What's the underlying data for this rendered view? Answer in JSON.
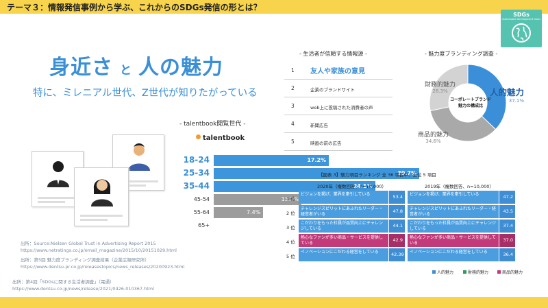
{
  "header": {
    "title": "テーマ３：情報発信事例から学ぶ、これからのSDGs発信の形とは？"
  },
  "badge": {
    "title": "SDGs",
    "subtitle": "Sustainable Development Goals",
    "icon": "globe-icon",
    "color": "#56c3b1"
  },
  "headline": {
    "part1": "身近さ",
    "connector": "と",
    "part2": "人の魅力"
  },
  "subline": "特に、ミレニアル世代、Z世代が知りたがっている",
  "talentbook": {
    "heading": "- talentbook閲覧世代 -",
    "logo": "talentbook",
    "ages": [
      {
        "label": "18-24",
        "value": "17.2%",
        "percent": 17.2,
        "highlight": true
      },
      {
        "label": "25-34",
        "value": "30.7%",
        "percent": 30.7,
        "highlight": true
      },
      {
        "label": "35-44",
        "value": "24.1%",
        "percent": 24.1,
        "highlight": true
      },
      {
        "label": "45-54",
        "value": "13.1%",
        "percent": 13.1,
        "highlight": false
      },
      {
        "label": "55-64",
        "value": "7.4%",
        "percent": 7.4,
        "highlight": false
      },
      {
        "label": "65+",
        "value": "",
        "percent": 0,
        "highlight": false
      }
    ]
  },
  "sources": [
    "出所：Source:Nielsen Global Trust in Advertising Report 2015",
    "https://www.netratings.co.jp/email_magazine/2015/10/20151029.html",
    "出所：第5回 魅力度ブランディング調査結果（企業広報研究所）",
    "https://www.dentsu-pr.co.jp/releasestopics/news_releases/20200923.html",
    "出所：第4回「SDGsに関する生活者調査」（電通）",
    "https://www.dentsu.co.jp/news/release/2021/0426-010367.html"
  ],
  "trust": {
    "heading": "- 生活者が信頼する情報源 -",
    "items": [
      {
        "rank": "1",
        "label": "友人や家族の意見"
      },
      {
        "rank": "2",
        "label": "企業のブランドサイト"
      },
      {
        "rank": "3",
        "label": "web上に投稿された消費者の声"
      },
      {
        "rank": "4",
        "label": "新聞広告"
      },
      {
        "rank": "5",
        "label": "映画の前の広告"
      }
    ]
  },
  "donut": {
    "heading": "- 魅力度ブランディング調査 -",
    "center": [
      "コーポレートブランド",
      "魅力の構成比"
    ],
    "slices": [
      {
        "label": "人的魅力",
        "value": 37.1,
        "pct": "37.1%",
        "color": "#3b8fd9"
      },
      {
        "label": "商品的魅力",
        "value": 34.6,
        "pct": "34.6%",
        "color": "#a9a9a9"
      },
      {
        "label": "財務的魅力",
        "value": 28.3,
        "pct": "28.3%",
        "color": "#d3d3d3"
      }
    ]
  },
  "ranking": {
    "title": "【図表 3】魅力項目ランキング 全 36 項目中、上位 5 項目",
    "col2020": "2020年（複数回答、n=10,000）",
    "col2019": "2019年（複数回答、n=10,000）",
    "ranks": [
      "1 位",
      "2 位",
      "3 位",
      "4 位",
      "5 位"
    ],
    "rows2020": [
      {
        "text": "ビジョンを掲げ、業界を牽引している",
        "value": "53.4",
        "kind": "blue"
      },
      {
        "text": "チャレンジスピリットにあふれたリーダー・経営者がいる",
        "value": "47.8",
        "kind": "blue"
      },
      {
        "text": "こだわりをもった社員が品質向上にチャレンジしている",
        "value": "44.1",
        "kind": "blue"
      },
      {
        "text": "熱心なファンが多い商品・サービスを提供している",
        "value": "42.9",
        "kind": "pink"
      },
      {
        "text": "イノベーションにこだわる経営をしている",
        "value": "42.39",
        "kind": "blue"
      }
    ],
    "rows2019": [
      {
        "text": "ビジョンを掲げ、業界を牽引している",
        "value": "47.2",
        "kind": "blue"
      },
      {
        "text": "チャレンジスピリットにあふれたリーダー・経営者がいる",
        "value": "43.5",
        "kind": "blue"
      },
      {
        "text": "こだわりをもった社員が品質向上にチャレンジしている",
        "value": "37.4",
        "kind": "blue"
      },
      {
        "text": "熱心なファンが多い商品・サービスを提供している",
        "value": "37.0",
        "kind": "pink"
      },
      {
        "text": "イノベーションにこだわる経営をしている",
        "value": "36.4",
        "kind": "blue"
      }
    ],
    "legend": [
      {
        "label": "人的魅力",
        "color": "#3f8ed4"
      },
      {
        "label": "財務的魅力",
        "color": "#2a9d5c"
      },
      {
        "label": "商品的魅力",
        "color": "#c23a7a"
      }
    ]
  },
  "colors": {
    "accent": "#3a8fd6",
    "band": "#f7d44c"
  }
}
